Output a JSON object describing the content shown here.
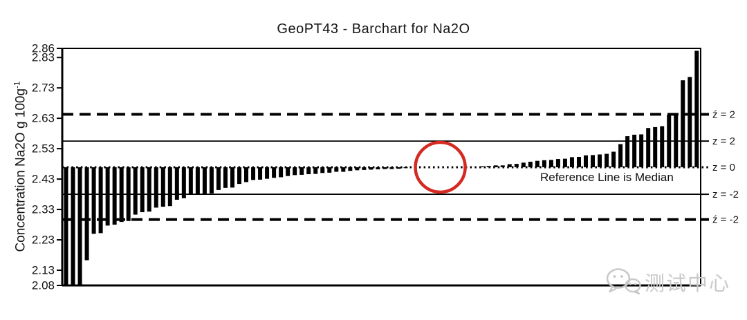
{
  "chart_data": {
    "type": "bar",
    "title": "GeoPT43 - Barchart for Na2O",
    "y_axis": {
      "label": "Concentration Na2O g 100g",
      "exponent": "-1",
      "ticks": [
        "2.86",
        "2.83",
        "2.73",
        "2.63",
        "2.53",
        "2.43",
        "2.33",
        "2.23",
        "2.13",
        "2.08"
      ],
      "ylim": [
        2.08,
        2.86
      ]
    },
    "median": 2.469,
    "values": [
      2.08,
      2.08,
      2.08,
      2.163,
      2.25,
      2.252,
      2.277,
      2.28,
      2.289,
      2.292,
      2.313,
      2.321,
      2.323,
      2.336,
      2.339,
      2.341,
      2.362,
      2.367,
      2.378,
      2.381,
      2.381,
      2.383,
      2.394,
      2.401,
      2.402,
      2.414,
      2.42,
      2.427,
      2.428,
      2.431,
      2.434,
      2.436,
      2.44,
      2.443,
      2.444,
      2.446,
      2.447,
      2.45,
      2.451,
      2.454,
      2.454,
      2.457,
      2.459,
      2.46,
      2.461,
      2.462,
      2.463,
      2.463,
      2.464,
      2.466,
      2.467,
      2.467,
      2.468,
      2.468,
      2.468,
      2.469,
      2.47,
      2.47,
      2.471,
      2.471,
      2.472,
      2.473,
      2.475,
      2.475,
      2.479,
      2.48,
      2.484,
      2.487,
      2.49,
      2.492,
      2.493,
      2.496,
      2.497,
      2.502,
      2.503,
      2.508,
      2.509,
      2.511,
      2.513,
      2.52,
      2.545,
      2.571,
      2.576,
      2.577,
      2.598,
      2.601,
      2.604,
      2.642,
      2.644,
      2.755,
      2.766,
      2.852
    ],
    "reference_lines": [
      {
        "label": "ź = 2",
        "value": 2.643,
        "style": "dashed"
      },
      {
        "label": "z = 2",
        "value": 2.555,
        "style": "solid"
      },
      {
        "label": "z = 0",
        "value": 2.469,
        "style": "dotted"
      },
      {
        "label": "z = -2",
        "value": 2.38,
        "style": "solid"
      },
      {
        "label": "ź = -2",
        "value": 2.297,
        "style": "dashed"
      }
    ],
    "annotations": {
      "median_note": "Reference Line is Median",
      "highlight_circle": {
        "center_bar": 55,
        "at_value": 2.469
      }
    },
    "bar_color": "#000000",
    "line_color": "#000000",
    "circle_color": "#d42a22"
  },
  "watermark": {
    "text": "测试中心",
    "color": "#c9c9c9"
  }
}
